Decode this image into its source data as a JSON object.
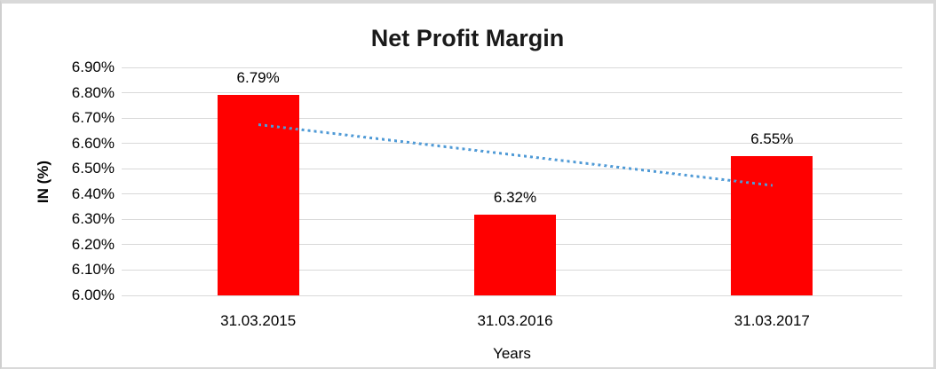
{
  "chart_data": {
    "type": "bar",
    "title": "Net Profit Margin",
    "xlabel": "Years",
    "ylabel": "IN (%)",
    "categories": [
      "31.03.2015",
      "31.03.2016",
      "31.03.2017"
    ],
    "values": [
      6.79,
      6.32,
      6.55
    ],
    "value_labels": [
      "6.79%",
      "6.32%",
      "6.55%"
    ],
    "ylim": [
      6.0,
      6.9
    ],
    "ytick_step": 0.1,
    "ytick_labels": [
      "6.00%",
      "6.10%",
      "6.20%",
      "6.30%",
      "6.40%",
      "6.50%",
      "6.60%",
      "6.70%",
      "6.80%",
      "6.90%"
    ],
    "grid": true,
    "legend": "none",
    "bar_color": "#ff0000",
    "gridline_color": "#d9d9d9",
    "title_color": "#1a1a1a",
    "text_color": "#000000",
    "trendline": {
      "type": "linear",
      "style": "dotted",
      "color": "#4f9ad6",
      "start_value": 6.673,
      "end_value": 6.433
    }
  }
}
